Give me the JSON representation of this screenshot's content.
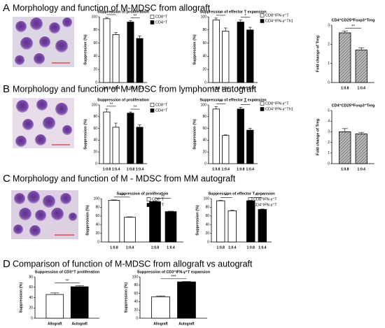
{
  "panels": [
    {
      "label": "A",
      "title": "Morphology and function of M-MDSC from allograft"
    },
    {
      "label": "B",
      "title": "Morphology and function of M-MDSC from lymphoma autograft"
    },
    {
      "label": "C",
      "title": "Morphology and function of M - MDSC from MM autograft"
    },
    {
      "label": "D",
      "title": "Comparison of function of M-MDSC from allograft vs autograft"
    }
  ],
  "chart_data": [
    {
      "type": "bar",
      "title": "Suppression of proliferation",
      "ylabel": "Suppression (%)",
      "categories": [
        "1:0.8",
        "1:0.4"
      ],
      "series": [
        {
          "name": "CD8⁺T",
          "color": "#ffffff",
          "values": [
            97,
            73
          ],
          "errors": [
            2,
            3
          ]
        },
        {
          "name": "CD4⁺T",
          "color": "#000000",
          "values": [
            92,
            67
          ],
          "errors": [
            2,
            4
          ]
        }
      ],
      "ylim": [
        0,
        100
      ],
      "yticks": [
        0,
        20,
        40,
        60,
        80,
        100
      ],
      "annotations": [
        "**",
        "**"
      ]
    },
    {
      "type": "bar",
      "title": "Suppression of effector T expansion",
      "ylabel": "Suppression (%)",
      "categories": [
        "1:0.8",
        "1:0.4"
      ],
      "series": [
        {
          "name": "CD8⁺IFN-γ⁺T",
          "color": "#ffffff",
          "values": [
            95,
            78
          ],
          "errors": [
            3,
            5
          ]
        },
        {
          "name": "CD4⁺IFN-γ⁺Th1",
          "color": "#000000",
          "values": [
            92,
            80
          ],
          "errors": [
            3,
            4
          ]
        }
      ],
      "ylim": [
        0,
        100
      ],
      "yticks": [
        0,
        20,
        40,
        60,
        80,
        100
      ],
      "annotations": [
        "*",
        "*"
      ]
    },
    {
      "type": "bar",
      "title": "CD4⁺CD25ʰⁱFoxp3⁺Treg",
      "ylabel": "Fold change of Treg",
      "categories": [
        "1:0.8",
        "1:0.4"
      ],
      "series": [
        {
          "color": "#9a9a9a",
          "hatched": true,
          "values": [
            2.6,
            1.7
          ],
          "errors": [
            0.1,
            0.12
          ]
        }
      ],
      "ylim": [
        0,
        3
      ],
      "yticks": [
        0,
        1,
        2,
        3
      ],
      "annotations": [
        "**"
      ]
    },
    {
      "type": "bar",
      "title": "Suppression of proliferation",
      "ylabel": "Suppression (%)",
      "categories": [
        "1:0.8",
        "1:0.4"
      ],
      "series": [
        {
          "name": "CD8⁺T",
          "color": "#ffffff",
          "values": [
            88,
            62
          ],
          "errors": [
            5,
            7
          ]
        },
        {
          "name": "CD4⁺T",
          "color": "#000000",
          "values": [
            86,
            62
          ],
          "errors": [
            2,
            4
          ]
        }
      ],
      "ylim": [
        0,
        100
      ],
      "yticks": [
        0,
        20,
        40,
        60,
        80,
        100
      ],
      "annotations": [
        "**",
        "**"
      ]
    },
    {
      "type": "bar",
      "title": "Suppression of effector T expansion",
      "ylabel": "Suppression (%)",
      "categories": [
        "1:0.8",
        "1:0.4"
      ],
      "series": [
        {
          "name": "CD8⁺IFN-γ⁺T",
          "color": "#ffffff",
          "values": [
            93,
            48
          ],
          "errors": [
            4,
            1
          ]
        },
        {
          "name": "CD4⁺IFN-γ⁺Th1",
          "color": "#000000",
          "values": [
            93,
            57
          ],
          "errors": [
            3,
            3
          ]
        }
      ],
      "ylim": [
        0,
        100
      ],
      "yticks": [
        0,
        20,
        40,
        60,
        80,
        100
      ],
      "annotations": [
        "**",
        "**"
      ]
    },
    {
      "type": "bar",
      "title": "CD4⁺CD25ʰⁱFoxp3⁺Treg",
      "ylabel": "Fold change of Treg",
      "categories": [
        "1:0.8",
        "1:0.4"
      ],
      "series": [
        {
          "color": "#9a9a9a",
          "hatched": true,
          "values": [
            3.0,
            2.8
          ],
          "errors": [
            0.3,
            0.15
          ]
        }
      ],
      "ylim": [
        0,
        5
      ],
      "yticks": [
        0,
        1,
        2,
        3,
        4,
        5
      ],
      "annotations": []
    },
    {
      "type": "bar",
      "title": "Suppression of proliferation",
      "ylabel": "Suppression (%)",
      "categories": [
        "1:0.8",
        "1:0.4"
      ],
      "series": [
        {
          "name": "CD8⁺T",
          "color": "#ffffff",
          "values": [
            96,
            57
          ],
          "errors": [
            1,
            1
          ]
        },
        {
          "name": "CD4⁺T",
          "color": "#000000",
          "values": [
            93,
            70
          ],
          "errors": [
            1,
            1
          ]
        }
      ],
      "ylim": [
        0,
        100
      ],
      "yticks": [
        0,
        20,
        40,
        60,
        80,
        100
      ],
      "annotations": [
        "***",
        "**"
      ]
    },
    {
      "type": "bar",
      "title": "Suppression of effector T expansion",
      "ylabel": "Suppression (%)",
      "categories": [
        "1:0.8",
        "1:0.4"
      ],
      "series": [
        {
          "name": "CD8⁺IFN-γ⁺T",
          "color": "#ffffff",
          "values": [
            95,
            72
          ],
          "errors": [
            1,
            1
          ]
        },
        {
          "name": "CD4⁺IFN-γ⁺T",
          "color": "#000000",
          "values": [
            95,
            75
          ],
          "errors": [
            1,
            1
          ]
        }
      ],
      "ylim": [
        0,
        100
      ],
      "yticks": [
        0,
        20,
        40,
        60,
        80,
        100
      ],
      "annotations": [
        "**",
        "**"
      ]
    },
    {
      "type": "bar",
      "title": "Suppression of CD3⁺T proliferation",
      "ylabel": "Suppression (%)",
      "categories": [
        "Allograft",
        "Autograft"
      ],
      "series": [
        {
          "colors": [
            "#ffffff",
            "#000000"
          ],
          "values": [
            46,
            61
          ],
          "errors": [
            3,
            2
          ]
        }
      ],
      "ylim": [
        0,
        80
      ],
      "yticks": [
        0,
        20,
        40,
        60,
        80
      ],
      "annotations": [
        "**"
      ]
    },
    {
      "type": "bar",
      "title": "Suppression of CD3⁺IFN-γ⁺T expansion",
      "ylabel": "Suppression (%)",
      "categories": [
        "Allograft",
        "Autograft"
      ],
      "series": [
        {
          "colors": [
            "#ffffff",
            "#000000"
          ],
          "values": [
            52,
            88
          ],
          "errors": [
            2,
            1
          ]
        }
      ],
      "ylim": [
        0,
        100
      ],
      "yticks": [
        0,
        20,
        40,
        60,
        80,
        100
      ],
      "annotations": [
        "***"
      ]
    }
  ]
}
